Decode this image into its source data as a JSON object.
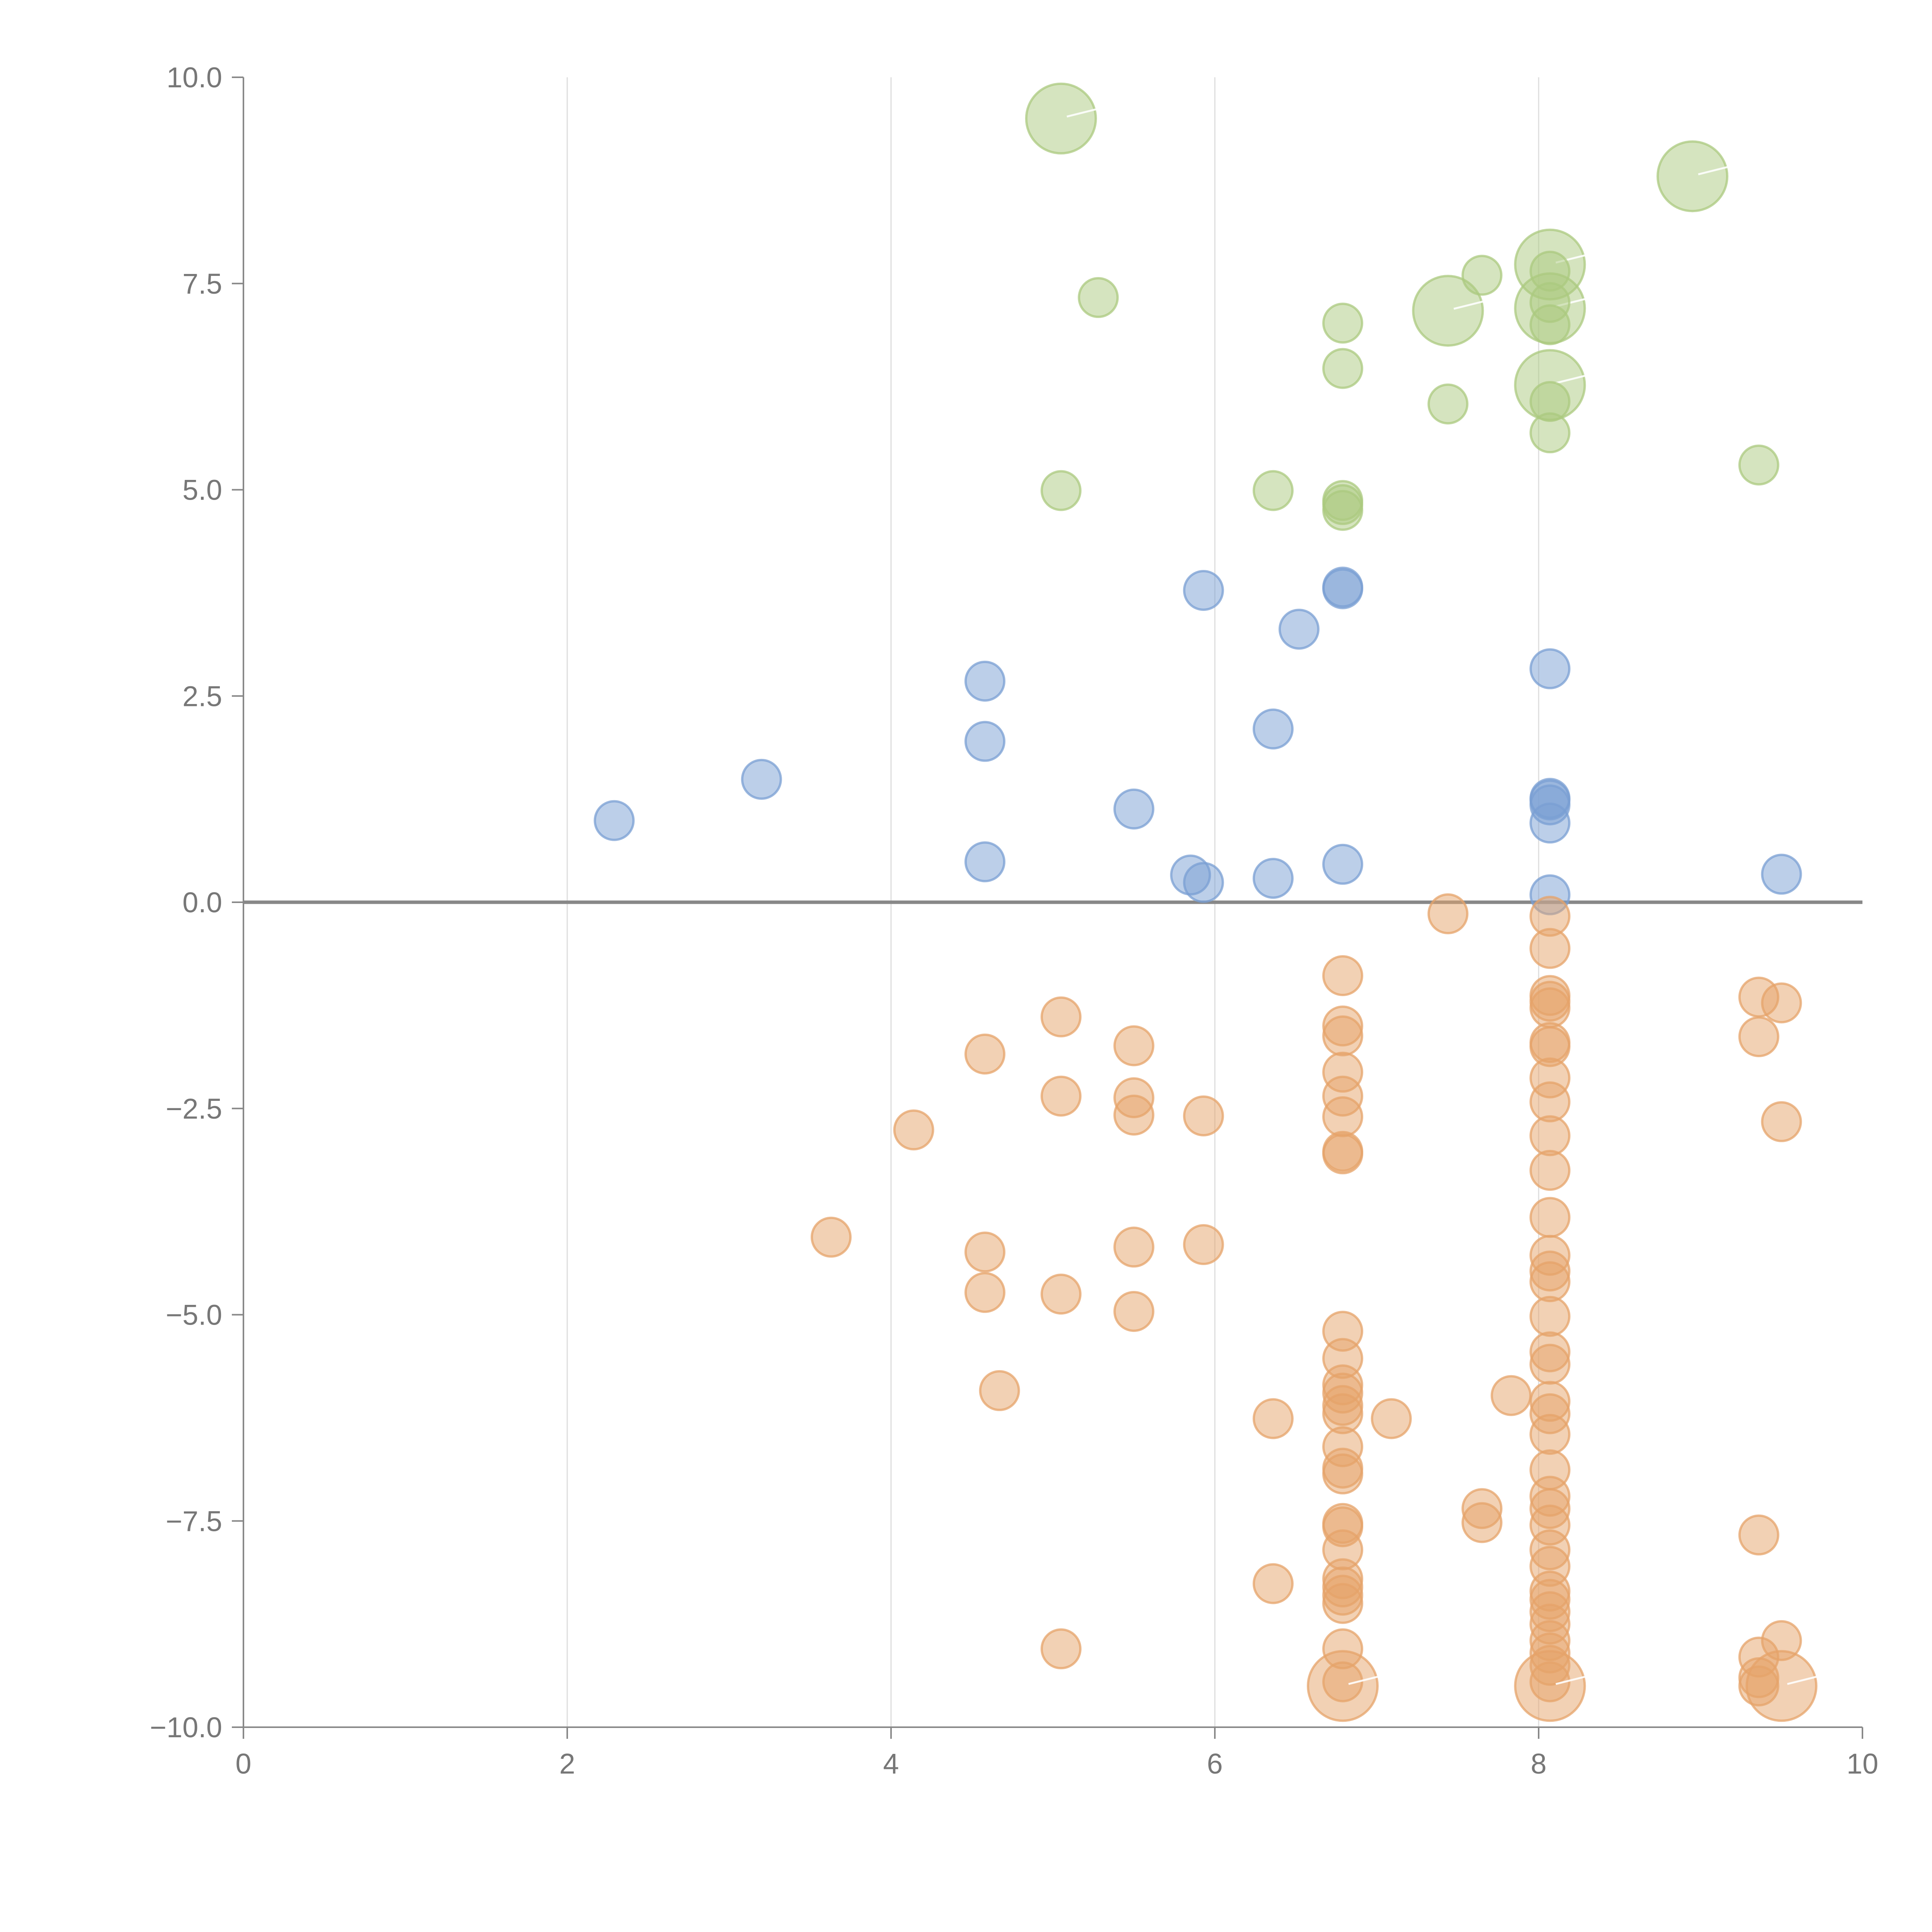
{
  "chart_data": {
    "type": "scatter",
    "title": "",
    "xlabel": "",
    "ylabel": "",
    "xlim": [
      0,
      10
    ],
    "ylim": [
      -10,
      10
    ],
    "x_ticks": [
      "0",
      "2",
      "4",
      "6",
      "8",
      "10"
    ],
    "y_ticks": [
      "10.0",
      "7.5",
      "5.0",
      "2.5",
      "0.0",
      "−2.5",
      "−5.0",
      "−7.5",
      "−10.0"
    ],
    "grid": "vertical",
    "legend": "none",
    "series": [
      {
        "color": "#abc97f",
        "points": [
          [
            5.05,
            9.5,
            3
          ],
          [
            5.28,
            7.33,
            1
          ],
          [
            5.05,
            4.99,
            1
          ],
          [
            6.36,
            4.99,
            1
          ],
          [
            6.79,
            7.02,
            1
          ],
          [
            6.79,
            6.47,
            1
          ],
          [
            6.79,
            4.87,
            1
          ],
          [
            6.79,
            4.82,
            1
          ],
          [
            6.79,
            4.75,
            1
          ],
          [
            7.44,
            7.17,
            3
          ],
          [
            7.44,
            6.04,
            1
          ],
          [
            7.65,
            7.6,
            1
          ],
          [
            8.07,
            7.73,
            3
          ],
          [
            8.07,
            7.2,
            3
          ],
          [
            8.07,
            6.27,
            3
          ],
          [
            8.07,
            7.65,
            1
          ],
          [
            8.07,
            7.27,
            1
          ],
          [
            8.07,
            7.0,
            1
          ],
          [
            8.07,
            6.07,
            1
          ],
          [
            8.07,
            5.69,
            1
          ],
          [
            8.95,
            8.8,
            3
          ],
          [
            9.36,
            5.3,
            1
          ]
        ]
      },
      {
        "color": "#7a9fd3",
        "points": [
          [
            2.29,
            0.99,
            1
          ],
          [
            3.2,
            1.49,
            1
          ],
          [
            4.58,
            2.68,
            1
          ],
          [
            4.58,
            1.95,
            1
          ],
          [
            4.58,
            0.49,
            1
          ],
          [
            5.5,
            1.13,
            1
          ],
          [
            5.85,
            0.33,
            1
          ],
          [
            5.93,
            0.24,
            1
          ],
          [
            5.93,
            3.78,
            1
          ],
          [
            6.36,
            2.1,
            1
          ],
          [
            6.36,
            0.29,
            1
          ],
          [
            6.52,
            3.31,
            1
          ],
          [
            6.79,
            3.82,
            1
          ],
          [
            6.79,
            3.8,
            1
          ],
          [
            6.79,
            0.46,
            1
          ],
          [
            8.07,
            2.83,
            1
          ],
          [
            8.07,
            1.26,
            1
          ],
          [
            8.07,
            1.24,
            1
          ],
          [
            8.07,
            1.18,
            1
          ],
          [
            8.07,
            0.96,
            1
          ],
          [
            8.07,
            0.09,
            1
          ],
          [
            9.5,
            0.34,
            1
          ]
        ]
      },
      {
        "color": "#e6a36a",
        "points": [
          [
            3.63,
            -4.06,
            1
          ],
          [
            4.14,
            -2.76,
            1
          ],
          [
            4.58,
            -1.84,
            1
          ],
          [
            4.58,
            -4.24,
            1
          ],
          [
            4.58,
            -4.73,
            1
          ],
          [
            4.67,
            -5.92,
            1
          ],
          [
            5.05,
            -1.39,
            1
          ],
          [
            5.05,
            -2.35,
            1
          ],
          [
            5.05,
            -4.75,
            1
          ],
          [
            5.05,
            -9.05,
            1
          ],
          [
            5.5,
            -1.74,
            1
          ],
          [
            5.5,
            -2.37,
            1
          ],
          [
            5.5,
            -2.58,
            1
          ],
          [
            5.5,
            -4.18,
            1
          ],
          [
            5.5,
            -4.96,
            1
          ],
          [
            5.93,
            -2.59,
            1
          ],
          [
            5.93,
            -4.15,
            1
          ],
          [
            6.36,
            -6.26,
            1
          ],
          [
            6.36,
            -8.26,
            1
          ],
          [
            6.79,
            -0.89,
            1
          ],
          [
            6.79,
            -1.5,
            1
          ],
          [
            6.79,
            -1.62,
            1
          ],
          [
            6.79,
            -2.06,
            1
          ],
          [
            6.79,
            -2.35,
            1
          ],
          [
            6.79,
            -2.6,
            1
          ],
          [
            6.79,
            -3.02,
            1
          ],
          [
            6.79,
            -3.05,
            1
          ],
          [
            6.79,
            -5.2,
            1
          ],
          [
            6.79,
            -5.53,
            1
          ],
          [
            6.79,
            -5.85,
            1
          ],
          [
            6.79,
            -5.95,
            1
          ],
          [
            6.79,
            -6.1,
            1
          ],
          [
            6.79,
            -6.2,
            1
          ],
          [
            6.79,
            -6.6,
            1
          ],
          [
            6.79,
            -6.86,
            1
          ],
          [
            6.79,
            -6.93,
            1
          ],
          [
            6.79,
            -7.53,
            1
          ],
          [
            6.79,
            -7.57,
            1
          ],
          [
            6.79,
            -7.85,
            1
          ],
          [
            6.79,
            -8.2,
            1
          ],
          [
            6.79,
            -8.3,
            1
          ],
          [
            6.79,
            -8.4,
            1
          ],
          [
            6.79,
            -8.5,
            1
          ],
          [
            6.79,
            -9.05,
            1
          ],
          [
            6.79,
            -9.45,
            1
          ],
          [
            6.79,
            -9.5,
            3
          ],
          [
            7.09,
            -6.26,
            1
          ],
          [
            7.44,
            -0.14,
            1
          ],
          [
            7.65,
            -7.35,
            1
          ],
          [
            7.65,
            -7.52,
            1
          ],
          [
            7.83,
            -5.98,
            1
          ],
          [
            8.07,
            -0.17,
            1
          ],
          [
            8.07,
            -0.56,
            1
          ],
          [
            8.07,
            -1.13,
            1
          ],
          [
            8.07,
            -1.2,
            1
          ],
          [
            8.07,
            -1.28,
            1
          ],
          [
            8.07,
            -1.7,
            1
          ],
          [
            8.07,
            -1.75,
            1
          ],
          [
            8.07,
            -2.13,
            1
          ],
          [
            8.07,
            -2.42,
            1
          ],
          [
            8.07,
            -2.83,
            1
          ],
          [
            8.07,
            -3.25,
            1
          ],
          [
            8.07,
            -3.82,
            1
          ],
          [
            8.07,
            -4.28,
            1
          ],
          [
            8.07,
            -4.47,
            1
          ],
          [
            8.07,
            -4.6,
            1
          ],
          [
            8.07,
            -5.02,
            1
          ],
          [
            8.07,
            -5.45,
            1
          ],
          [
            8.07,
            -5.6,
            1
          ],
          [
            8.07,
            -6.05,
            1
          ],
          [
            8.07,
            -6.2,
            1
          ],
          [
            8.07,
            -6.45,
            1
          ],
          [
            8.07,
            -6.88,
            1
          ],
          [
            8.07,
            -7.2,
            1
          ],
          [
            8.07,
            -7.35,
            1
          ],
          [
            8.07,
            -7.55,
            1
          ],
          [
            8.07,
            -7.85,
            1
          ],
          [
            8.07,
            -8.05,
            1
          ],
          [
            8.07,
            -8.35,
            1
          ],
          [
            8.07,
            -8.45,
            1
          ],
          [
            8.07,
            -8.6,
            1
          ],
          [
            8.07,
            -8.75,
            1
          ],
          [
            8.07,
            -8.95,
            1
          ],
          [
            8.07,
            -9.1,
            1
          ],
          [
            8.07,
            -9.25,
            1
          ],
          [
            8.07,
            -9.45,
            1
          ],
          [
            8.07,
            -9.5,
            3
          ],
          [
            9.36,
            -1.15,
            1
          ],
          [
            9.36,
            -1.63,
            1
          ],
          [
            9.36,
            -7.67,
            1
          ],
          [
            9.36,
            -9.15,
            1
          ],
          [
            9.36,
            -9.4,
            1
          ],
          [
            9.36,
            -9.5,
            1
          ],
          [
            9.5,
            -1.22,
            1
          ],
          [
            9.5,
            -2.66,
            1
          ],
          [
            9.5,
            -8.95,
            1
          ],
          [
            9.5,
            -9.5,
            3
          ]
        ]
      }
    ]
  }
}
